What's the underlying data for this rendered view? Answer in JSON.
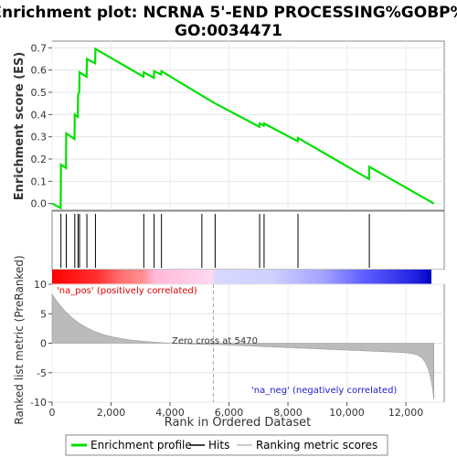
{
  "chart_data": {
    "type": "line",
    "title_line1": "Enrichment plot: NCRNA 5'-END PROCESSING%GOBP%",
    "title_line2": "GO:0034471",
    "es_panel": {
      "ylabel": "Enrichment score (ES)",
      "ylim": [
        -0.03,
        0.73
      ],
      "yticks": [
        "0.0",
        "0.1",
        "0.2",
        "0.3",
        "0.4",
        "0.5",
        "0.6",
        "0.7"
      ],
      "ytick_values": [
        0.0,
        0.1,
        0.2,
        0.3,
        0.4,
        0.5,
        0.6,
        0.7
      ],
      "series_color": "#00e000",
      "points": [
        [
          0,
          0.0
        ],
        [
          290,
          -0.02
        ],
        [
          300,
          0.175
        ],
        [
          470,
          0.16
        ],
        [
          480,
          0.315
        ],
        [
          760,
          0.29
        ],
        [
          770,
          0.4
        ],
        [
          870,
          0.39
        ],
        [
          880,
          0.49
        ],
        [
          920,
          0.5
        ],
        [
          930,
          0.59
        ],
        [
          1170,
          0.57
        ],
        [
          1180,
          0.65
        ],
        [
          1460,
          0.63
        ],
        [
          1470,
          0.695
        ],
        [
          3100,
          0.57
        ],
        [
          3110,
          0.59
        ],
        [
          3450,
          0.565
        ],
        [
          3460,
          0.595
        ],
        [
          3700,
          0.58
        ],
        [
          3710,
          0.595
        ],
        [
          5080,
          0.485
        ],
        [
          5530,
          0.45
        ],
        [
          7030,
          0.345
        ],
        [
          7040,
          0.36
        ],
        [
          7180,
          0.35
        ],
        [
          7190,
          0.36
        ],
        [
          8330,
          0.28
        ],
        [
          8340,
          0.295
        ],
        [
          10750,
          0.11
        ],
        [
          10760,
          0.165
        ],
        [
          12950,
          0.0
        ]
      ]
    },
    "hits": [
      300,
      480,
      770,
      880,
      930,
      1180,
      1470,
      3110,
      3460,
      3710,
      5080,
      5530,
      7040,
      7190,
      8340,
      10760
    ],
    "rank_panel": {
      "ylabel": "Ranked list metric (PreRanked)",
      "ylim": [
        -10,
        10
      ],
      "yticks": [
        "10",
        "5",
        "0",
        "-5",
        "-10"
      ],
      "ytick_values": [
        10,
        5,
        0,
        -5,
        -10
      ],
      "zero_cross_label": "Zero cross at 5470",
      "zero_cross": 5470,
      "pos_label": "'na_pos' (positively correlated)",
      "neg_label": "'na_neg' (negatively correlated)"
    },
    "x_axis": {
      "label": "Rank in Ordered Dataset",
      "xlim": [
        0,
        13300
      ],
      "ticks": [
        "0",
        "2,000",
        "4,000",
        "6,000",
        "8,000",
        "10,000",
        "12,000"
      ],
      "tick_values": [
        0,
        2000,
        4000,
        6000,
        8000,
        10000,
        12000
      ],
      "max_rank": 12950
    },
    "legend": {
      "items": [
        {
          "label": "Enrichment profile",
          "color": "#00e000"
        },
        {
          "label": "Hits",
          "color": "#000000"
        },
        {
          "label": "Ranking metric scores",
          "color": "#bbbbbb"
        }
      ]
    }
  }
}
